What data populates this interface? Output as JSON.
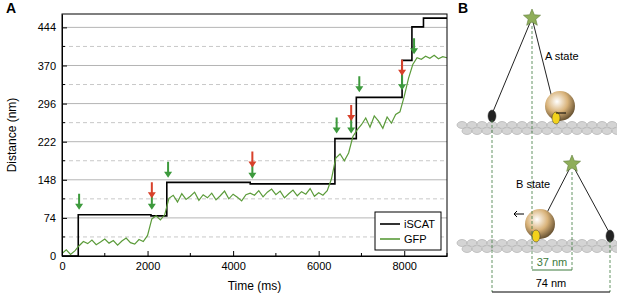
{
  "chart_data": {
    "type": "line",
    "title": "A",
    "x_label": "Time (ms)",
    "y_label": "Distance (nm)",
    "xlim": [
      0,
      9000
    ],
    "xticks": [
      0,
      2000,
      4000,
      6000,
      8000
    ],
    "ylim": [
      0,
      470
    ],
    "yticks": [
      0,
      74,
      148,
      222,
      296,
      370,
      444
    ],
    "grid": true,
    "legend": "lower right",
    "series": [
      {
        "name": "iSCAT",
        "color": "#000000",
        "line_style": "step",
        "x": [
          0,
          380,
          2080,
          2450,
          4400,
          6380,
          6880,
          7950,
          8180,
          8450,
          9000
        ],
        "values": [
          0,
          80,
          78,
          143,
          140,
          228,
          308,
          380,
          445,
          462,
          462
        ]
      },
      {
        "name": "GFP",
        "color": "#5b9b3a",
        "line_style": "solid",
        "x": [
          0,
          100,
          200,
          300,
          400,
          500,
          600,
          700,
          800,
          900,
          1000,
          1100,
          1200,
          1300,
          1400,
          1500,
          1600,
          1700,
          1800,
          1900,
          2000,
          2100,
          2200,
          2300,
          2400,
          2500,
          2600,
          2700,
          2800,
          2900,
          3000,
          3100,
          3200,
          3300,
          3400,
          3500,
          3600,
          3700,
          3800,
          3900,
          4000,
          4100,
          4200,
          4300,
          4400,
          4500,
          4600,
          4700,
          4800,
          4900,
          5000,
          5100,
          5200,
          5300,
          5400,
          5500,
          5600,
          5700,
          5800,
          5900,
          6000,
          6100,
          6200,
          6300,
          6400,
          6500,
          6600,
          6700,
          6800,
          6900,
          7000,
          7100,
          7200,
          7300,
          7400,
          7500,
          7600,
          7700,
          7800,
          7900,
          8000,
          8100,
          8200,
          8300,
          8400,
          8500,
          8600,
          8700,
          8800,
          8900,
          9000
        ],
        "values": [
          5,
          12,
          3,
          10,
          20,
          28,
          24,
          31,
          22,
          27,
          33,
          25,
          30,
          21,
          29,
          35,
          26,
          23,
          32,
          28,
          40,
          72,
          78,
          70,
          80,
          112,
          118,
          105,
          121,
          110,
          116,
          124,
          108,
          119,
          113,
          122,
          109,
          117,
          126,
          111,
          120,
          114,
          107,
          119,
          122,
          118,
          127,
          115,
          124,
          130,
          119,
          126,
          113,
          121,
          128,
          117,
          125,
          120,
          131,
          116,
          123,
          118,
          127,
          150,
          190,
          198,
          185,
          200,
          232,
          245,
          255,
          268,
          250,
          272,
          262,
          248,
          270,
          258,
          275,
          280,
          310,
          345,
          372,
          385,
          382,
          388,
          384,
          390,
          383,
          387,
          385
        ]
      }
    ],
    "step_markers": [
      {
        "x": 400,
        "y": 90,
        "color": "green"
      },
      {
        "x": 2100,
        "y": 90,
        "color": "green"
      },
      {
        "x": 2100,
        "y": 112,
        "color": "red"
      },
      {
        "x": 2480,
        "y": 152,
        "color": "green"
      },
      {
        "x": 4450,
        "y": 150,
        "color": "green"
      },
      {
        "x": 4450,
        "y": 172,
        "color": "red"
      },
      {
        "x": 6420,
        "y": 238,
        "color": "green"
      },
      {
        "x": 6760,
        "y": 238,
        "color": "green"
      },
      {
        "x": 6760,
        "y": 262,
        "color": "red"
      },
      {
        "x": 6950,
        "y": 318,
        "color": "green"
      },
      {
        "x": 7950,
        "y": 322,
        "color": "green"
      },
      {
        "x": 7950,
        "y": 350,
        "color": "red"
      },
      {
        "x": 8230,
        "y": 392,
        "color": "green"
      }
    ]
  },
  "diagram": {
    "label": "B",
    "states": [
      "A state",
      "B state"
    ],
    "distances": [
      "37 nm",
      "74 nm"
    ]
  }
}
